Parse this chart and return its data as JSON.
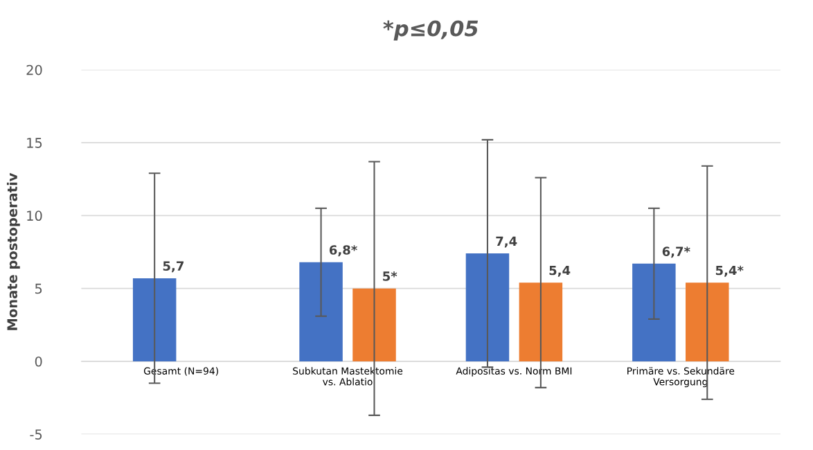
{
  "chart_data": {
    "type": "bar",
    "title": "*p≤0,05",
    "ylabel": "Monate postoperativ",
    "categories": [
      "Gesamt (N=94)",
      "Subkutan Mastektomie\nvs. Ablatio",
      "Adipositas vs. Norm BMI",
      "Primäre vs. Sekundäre\nVersorgung"
    ],
    "series": [
      {
        "color": "#4472c4",
        "values": [
          5.7,
          6.8,
          7.4,
          6.7
        ],
        "errors": [
          7.2,
          3.7,
          7.8,
          3.8
        ],
        "value_labels": [
          "5,7",
          "6,8*",
          "7,4",
          "6,7*"
        ]
      },
      {
        "color": "#ed7d31",
        "values": [
          null,
          5,
          5.4,
          5.4
        ],
        "errors": [
          null,
          8.7,
          7.2,
          8.0
        ],
        "value_labels": [
          null,
          "5*",
          "5,4",
          "5,4*"
        ]
      }
    ],
    "ylim": [
      -5,
      20
    ],
    "yticks": [
      -5,
      0,
      5,
      10,
      15,
      20
    ],
    "grid": "y",
    "legend": false
  }
}
